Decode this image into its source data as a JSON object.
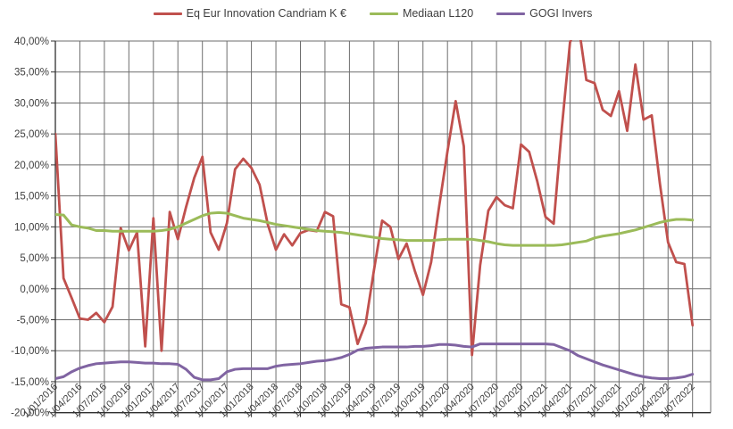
{
  "window": {
    "background": "#ffffff"
  },
  "legend": [
    {
      "label": "Eq Eur Innovation Candriam K €",
      "color": "#c0504d"
    },
    {
      "label": "Mediaan L120",
      "color": "#9bbb59"
    },
    {
      "label": "GOGI Invers",
      "color": "#8064a2"
    }
  ],
  "colors": {
    "gridline": "#6e6e6e",
    "axis_line": "#303030",
    "tick_text": "#404040"
  },
  "chart_data": {
    "type": "line",
    "title": "",
    "xlabel": "",
    "ylabel": "",
    "grid": true,
    "legend_position": "top",
    "ylim": [
      -20,
      40
    ],
    "ytick_step": 5,
    "y_tick_labels": [
      "40,00%",
      "35,00%",
      "30,00%",
      "25,00%",
      "20,00%",
      "15,00%",
      "10,00%",
      "5,00%",
      "0,00%",
      "-5,00%",
      "-10,00%",
      "-15,00%",
      "-20,00%"
    ],
    "x_start": "1/01/2016",
    "x_interval": "monthly",
    "x_tick_labels": [
      "1/01/2016",
      "1/04/2016",
      "1/07/2016",
      "1/10/2016",
      "1/01/2017",
      "1/04/2017",
      "1/07/2017",
      "1/10/2017",
      "1/01/2018",
      "1/04/2018",
      "1/07/2018",
      "1/10/2018",
      "1/01/2019",
      "1/04/2019",
      "1/07/2019",
      "1/10/2019",
      "1/01/2020",
      "1/04/2020",
      "1/07/2020",
      "1/10/2020",
      "1/01/2021",
      "1/04/2021",
      "1/07/2021",
      "1/10/2021",
      "1/01/2022",
      "1/04/2022",
      "1/07/2022"
    ],
    "series": [
      {
        "name": "Eq Eur Innovation Candriam K €",
        "color": "#c0504d",
        "width": 2.8,
        "values": [
          25.0,
          1.7,
          -1.5,
          -4.8,
          -5.0,
          -3.9,
          -5.4,
          -2.9,
          9.8,
          6.2,
          9.1,
          -9.3,
          11.4,
          -10.0,
          12.4,
          8.0,
          13.2,
          17.9,
          21.3,
          9.1,
          6.3,
          10.6,
          19.3,
          21.0,
          19.5,
          16.8,
          10.4,
          6.3,
          8.8,
          7.0,
          9.0,
          9.5,
          9.3,
          12.4,
          11.7,
          -2.5,
          -3.0,
          -8.9,
          -5.5,
          3.0,
          11.0,
          10.0,
          4.8,
          7.3,
          2.9,
          -1.0,
          4.3,
          13.5,
          22.2,
          30.3,
          23.0,
          -10.7,
          3.8,
          12.6,
          14.8,
          13.5,
          13.0,
          23.3,
          22.1,
          17.3,
          11.6,
          10.5,
          26.0,
          39.8,
          43.0,
          33.7,
          33.2,
          28.9,
          27.9,
          31.9,
          25.5,
          36.2,
          27.3,
          28.0,
          17.0,
          7.5,
          4.3,
          4.0,
          -5.9
        ]
      },
      {
        "name": "Mediaan L120",
        "color": "#9bbb59",
        "width": 3,
        "values": [
          12.0,
          11.9,
          10.3,
          10.0,
          9.8,
          9.4,
          9.4,
          9.3,
          9.3,
          9.3,
          9.3,
          9.3,
          9.3,
          9.4,
          9.6,
          10.0,
          10.6,
          11.2,
          11.8,
          12.2,
          12.3,
          12.2,
          11.8,
          11.4,
          11.2,
          11.0,
          10.7,
          10.4,
          10.2,
          10.0,
          9.8,
          9.6,
          9.4,
          9.3,
          9.2,
          9.1,
          8.9,
          8.7,
          8.5,
          8.3,
          8.1,
          8.0,
          7.9,
          7.8,
          7.8,
          7.8,
          7.8,
          7.9,
          8.0,
          8.0,
          8.0,
          8.0,
          7.8,
          7.6,
          7.3,
          7.1,
          7.0,
          7.0,
          7.0,
          7.0,
          7.0,
          7.0,
          7.1,
          7.3,
          7.5,
          7.7,
          8.2,
          8.5,
          8.7,
          8.9,
          9.2,
          9.5,
          9.9,
          10.3,
          10.7,
          11.0,
          11.2,
          11.2,
          11.1
        ]
      },
      {
        "name": "GOGI Invers",
        "color": "#8064a2",
        "width": 3,
        "values": [
          -14.5,
          -14.2,
          -13.4,
          -12.8,
          -12.4,
          -12.1,
          -12.0,
          -11.9,
          -11.8,
          -11.8,
          -11.9,
          -12.0,
          -12.0,
          -12.1,
          -12.1,
          -12.2,
          -13.0,
          -14.3,
          -14.7,
          -14.7,
          -14.5,
          -13.4,
          -13.0,
          -12.9,
          -12.9,
          -12.9,
          -12.9,
          -12.5,
          -12.3,
          -12.2,
          -12.1,
          -11.9,
          -11.7,
          -11.6,
          -11.4,
          -11.1,
          -10.6,
          -9.9,
          -9.6,
          -9.5,
          -9.4,
          -9.4,
          -9.4,
          -9.4,
          -9.3,
          -9.3,
          -9.2,
          -9.0,
          -9.0,
          -9.1,
          -9.3,
          -9.4,
          -8.9,
          -8.9,
          -8.9,
          -8.9,
          -8.9,
          -8.9,
          -8.9,
          -8.9,
          -8.9,
          -9.0,
          -9.5,
          -10.0,
          -10.8,
          -11.3,
          -11.8,
          -12.3,
          -12.7,
          -13.1,
          -13.5,
          -13.9,
          -14.2,
          -14.4,
          -14.5,
          -14.5,
          -14.4,
          -14.2,
          -13.8
        ]
      }
    ]
  }
}
